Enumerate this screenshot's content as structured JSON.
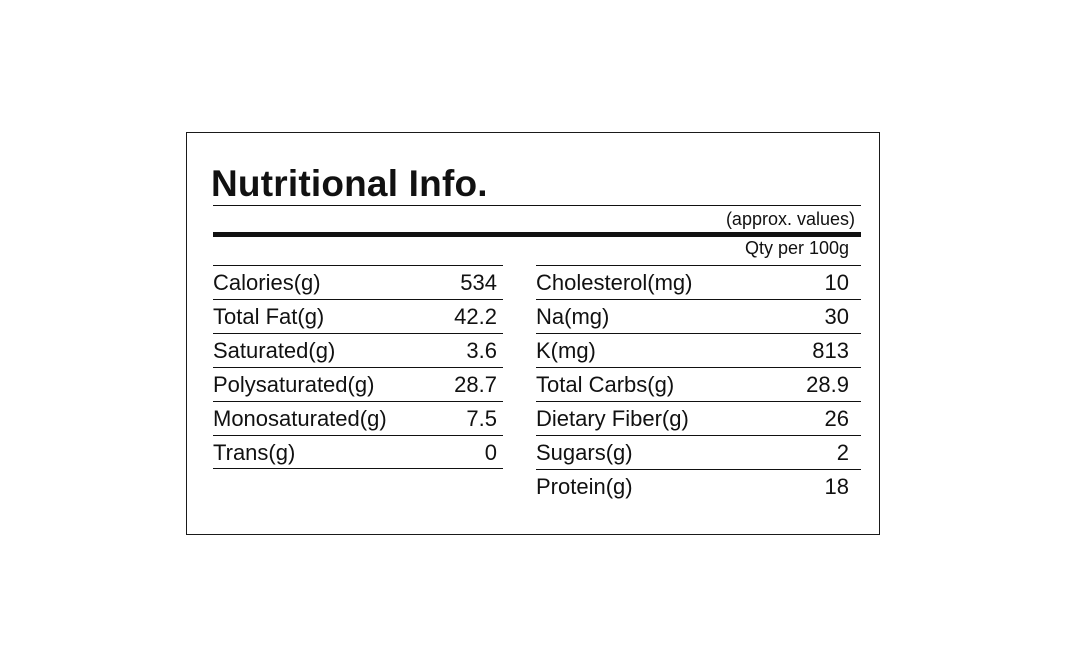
{
  "title": "Nutritional Info.",
  "subtitle": "(approx. values)",
  "serving": "Qty per 100g",
  "left": [
    {
      "name": "Calories(g)",
      "value": "534"
    },
    {
      "name": "Total Fat(g)",
      "value": "42.2"
    },
    {
      "name": "Saturated(g)",
      "value": "3.6"
    },
    {
      "name": "Polysaturated(g)",
      "value": "28.7"
    },
    {
      "name": "Monosaturated(g)",
      "value": "7.5"
    },
    {
      "name": "Trans(g)",
      "value": "0"
    }
  ],
  "right": [
    {
      "name": "Cholesterol(mg)",
      "value": "10"
    },
    {
      "name": "Na(mg)",
      "value": "30"
    },
    {
      "name": "K(mg)",
      "value": "813"
    },
    {
      "name": "Total Carbs(g)",
      "value": "28.9"
    },
    {
      "name": "Dietary Fiber(g)",
      "value": "26"
    },
    {
      "name": "Sugars(g)",
      "value": "2"
    },
    {
      "name": "Protein(g)",
      "value": "18"
    }
  ]
}
